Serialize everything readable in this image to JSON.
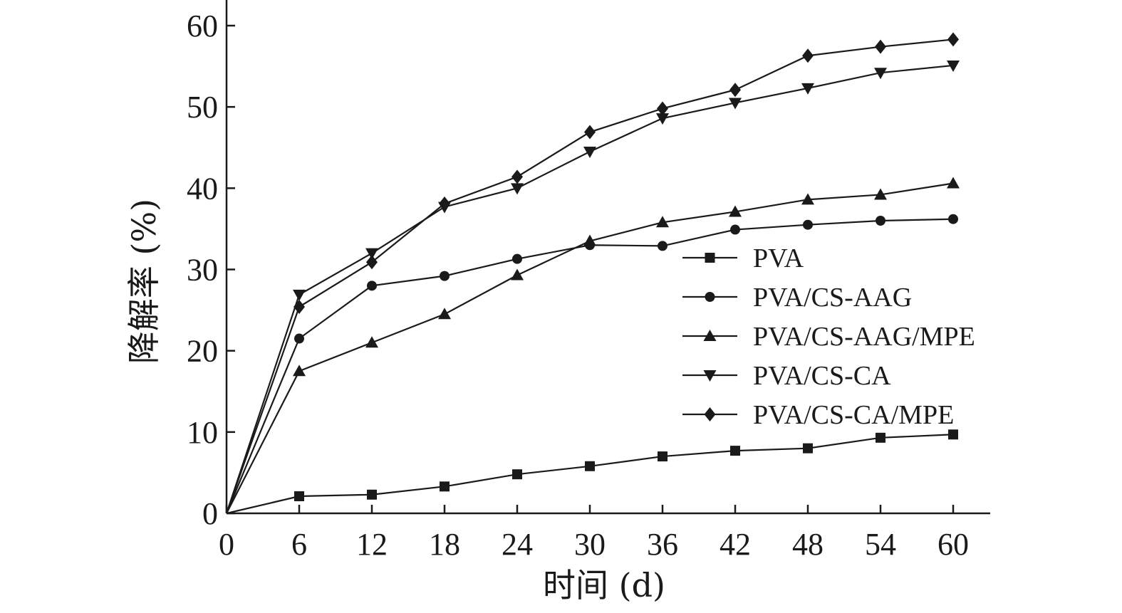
{
  "chart_data": {
    "type": "line",
    "xlabel": "时间 (d)",
    "ylabel": "降解率 (%)",
    "xlim": [
      0,
      63
    ],
    "ylim": [
      0,
      60
    ],
    "xticks": [
      0,
      6,
      12,
      18,
      24,
      30,
      36,
      42,
      48,
      54,
      60
    ],
    "yticks": [
      0,
      10,
      20,
      30,
      40,
      50,
      60
    ],
    "grid": false,
    "legend_position": "right",
    "x": [
      0,
      6,
      12,
      18,
      24,
      30,
      36,
      42,
      48,
      54,
      60
    ],
    "series": [
      {
        "name": "PVA",
        "marker": "square",
        "values": [
          0,
          2.1,
          2.3,
          3.3,
          4.8,
          5.8,
          7.0,
          7.7,
          8.0,
          9.3,
          9.7
        ]
      },
      {
        "name": "PVA/CS-AAG",
        "marker": "circle",
        "values": [
          0,
          21.5,
          28.0,
          29.2,
          31.3,
          33.0,
          32.9,
          34.9,
          35.5,
          36.0,
          36.2
        ]
      },
      {
        "name": "PVA/CS-AAG/MPE",
        "marker": "triangle-up",
        "values": [
          0,
          17.5,
          21.0,
          24.5,
          29.3,
          33.5,
          35.8,
          37.1,
          38.6,
          39.2,
          40.6
        ]
      },
      {
        "name": "PVA/CS-CA",
        "marker": "triangle-down",
        "values": [
          0,
          26.9,
          32.0,
          37.7,
          40.0,
          44.5,
          48.6,
          50.5,
          52.3,
          54.2,
          55.1
        ]
      },
      {
        "name": "PVA/CS-CA/MPE",
        "marker": "diamond",
        "values": [
          0,
          25.4,
          30.9,
          38.1,
          41.4,
          46.9,
          49.8,
          52.1,
          56.3,
          57.4,
          58.3
        ]
      }
    ],
    "colors": {
      "ink": "#1a1a1a",
      "background": "#ffffff"
    }
  }
}
